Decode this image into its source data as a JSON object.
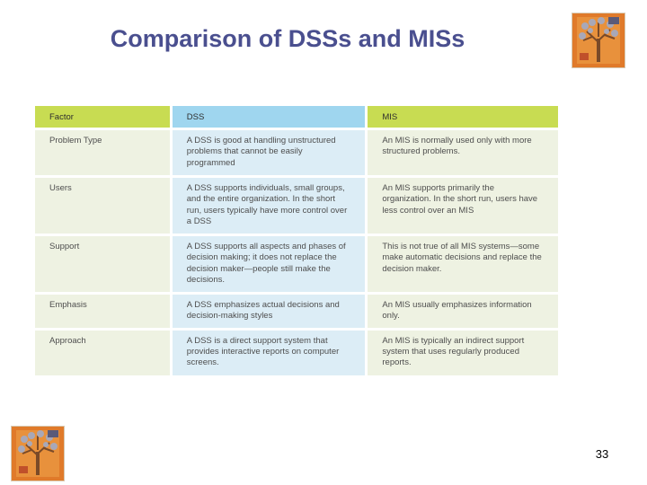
{
  "slide": {
    "title": "Comparison of DSSs and MISs",
    "page_number": "33"
  },
  "table": {
    "headers": [
      "Factor",
      "DSS",
      "MIS"
    ],
    "rows": [
      {
        "factor": "Problem Type",
        "dss": "A DSS is good at handling unstructured problems that cannot be easily programmed",
        "mis": "An MIS is normally used only with more structured problems."
      },
      {
        "factor": "Users",
        "dss": "A DSS supports individuals, small groups, and the entire organization. In the short run, users typically have more control over a DSS",
        "mis": "An MIS supports primarily the organization. In the short run, users have less control over an MIS"
      },
      {
        "factor": "Support",
        "dss": "A DSS supports all aspects and phases of decision making; it does not replace the decision maker—people still make the decisions.",
        "mis": "This is not true of all MIS systems—some make automatic decisions and replace the decision maker."
      },
      {
        "factor": "Emphasis",
        "dss": "A DSS emphasizes actual decisions and decision-making styles",
        "mis": "An MIS usually emphasizes information only."
      },
      {
        "factor": "Approach",
        "dss": "A DSS is a direct support system that provides interactive reports on computer screens.",
        "mis": "An MIS is typically an indirect support system that uses regularly produced reports."
      }
    ]
  },
  "colors": {
    "title": "#4a4f8f",
    "header_green": "#c8dc52",
    "header_blue": "#9fd6ef",
    "cell_green": "#eef2e2",
    "cell_blue": "#dcedf6",
    "logo_orange": "#e07a2a"
  },
  "icons": {
    "logo": "tree-logo-icon"
  }
}
